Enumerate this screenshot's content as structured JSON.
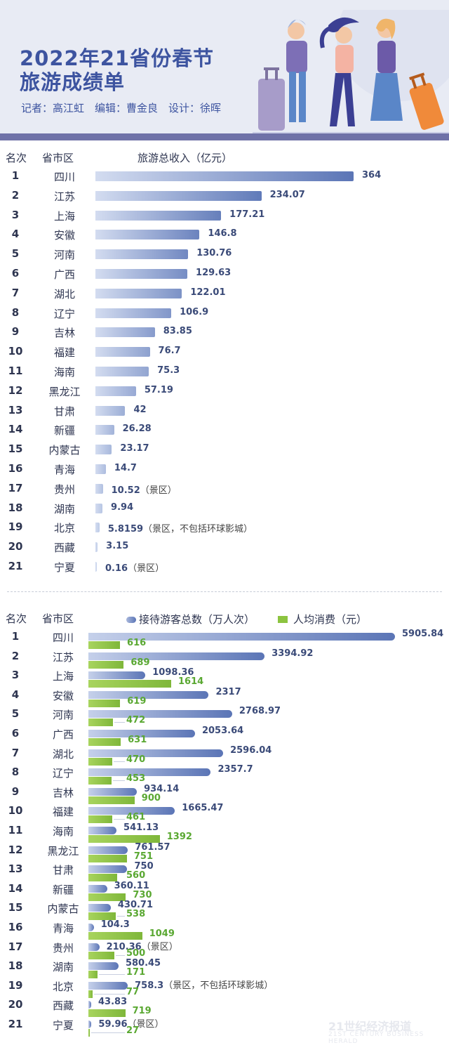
{
  "header": {
    "title_line1": "2022年21省份春节",
    "title_line2": "旅游成绩单",
    "byline": "记者：高江虹　编辑：曹金良　设计：徐晖"
  },
  "colors": {
    "blue_dark": "#5b75b6",
    "blue_light": "#c5d0ea",
    "green_dark": "#7fb73a",
    "green_light": "#a8d45e",
    "title": "#3d54a0"
  },
  "chart_data": [
    {
      "type": "bar",
      "rank_header": "名次",
      "province_header": "省市区",
      "series_header": "旅游总收入（亿元）",
      "categories": [
        "四川",
        "江苏",
        "上海",
        "安徽",
        "河南",
        "广西",
        "湖北",
        "辽宁",
        "吉林",
        "福建",
        "海南",
        "黑龙江",
        "甘肃",
        "新疆",
        "内蒙古",
        "青海",
        "贵州",
        "湖南",
        "北京",
        "西藏",
        "宁夏"
      ],
      "ranks": [
        "1",
        "2",
        "3",
        "4",
        "5",
        "6",
        "7",
        "8",
        "9",
        "10",
        "11",
        "12",
        "13",
        "14",
        "15",
        "16",
        "17",
        "18",
        "19",
        "20",
        "21"
      ],
      "values": [
        364,
        234.07,
        177.21,
        146.8,
        130.76,
        129.63,
        122.01,
        106.9,
        83.85,
        76.7,
        75.3,
        57.19,
        42,
        26.28,
        23.17,
        14.7,
        10.52,
        9.94,
        5.8159,
        3.15,
        0.16
      ],
      "labels": [
        "364",
        "234.07",
        "177.21",
        "146.8",
        "130.76",
        "129.63",
        "122.01",
        "106.9",
        "83.85",
        "76.7",
        "75.3",
        "57.19",
        "42",
        "26.28",
        "23.17",
        "14.7",
        "10.52",
        "9.94",
        "5.8159",
        "3.15",
        "0.16"
      ],
      "notes": [
        "",
        "",
        "",
        "",
        "",
        "",
        "",
        "",
        "",
        "",
        "",
        "",
        "",
        "",
        "",
        "",
        "（景区）",
        "",
        "（景区，不包括环球影城）",
        "",
        "（景区）"
      ]
    },
    {
      "type": "bar",
      "rank_header": "名次",
      "province_header": "省市区",
      "categories": [
        "四川",
        "江苏",
        "上海",
        "安徽",
        "河南",
        "广西",
        "湖北",
        "辽宁",
        "吉林",
        "福建",
        "海南",
        "黑龙江",
        "甘肃",
        "新疆",
        "内蒙古",
        "青海",
        "贵州",
        "湖南",
        "北京",
        "西藏",
        "宁夏"
      ],
      "ranks": [
        "1",
        "2",
        "3",
        "4",
        "5",
        "6",
        "7",
        "8",
        "9",
        "10",
        "11",
        "12",
        "13",
        "14",
        "15",
        "16",
        "17",
        "18",
        "19",
        "20",
        "21"
      ],
      "notes": [
        "",
        "",
        "",
        "",
        "",
        "",
        "",
        "",
        "",
        "",
        "",
        "",
        "",
        "",
        "",
        "",
        "（景区）",
        "",
        "（景区，不包括环球影城）",
        "",
        "（景区）"
      ],
      "series": [
        {
          "name": "接待游客总数（万人次）",
          "values": [
            5905.84,
            3394.92,
            1098.36,
            2317,
            2768.97,
            2053.64,
            2596.04,
            2357.7,
            934.14,
            1665.47,
            541.13,
            761.57,
            750,
            360.11,
            430.71,
            104.3,
            210.36,
            580.45,
            758.3,
            43.83,
            59.96
          ],
          "labels": [
            "5905.84",
            "3394.92",
            "1098.36",
            "2317",
            "2768.97",
            "2053.64",
            "2596.04",
            "2357.7",
            "934.14",
            "1665.47",
            "541.13",
            "761.57",
            "750",
            "360.11",
            "430.71",
            "104.3",
            "210.36",
            "580.45",
            "758.3",
            "43.83",
            "59.96"
          ]
        },
        {
          "name": "人均消费（元）",
          "values": [
            616,
            689,
            1614,
            619,
            472,
            631,
            470,
            453,
            900,
            461,
            1392,
            751,
            560,
            730,
            538,
            1049,
            500,
            171,
            77,
            719,
            27
          ],
          "labels": [
            "616",
            "689",
            "1614",
            "619",
            "472",
            "631",
            "470",
            "453",
            "900",
            "461",
            "1392",
            "751",
            "560",
            "730",
            "538",
            "1049",
            "500",
            "171",
            "77",
            "719",
            "27"
          ]
        }
      ]
    }
  ],
  "watermark": {
    "line1": "21世纪经济报道",
    "line2": "21ST CENTURY BUSINESS HERALD"
  }
}
